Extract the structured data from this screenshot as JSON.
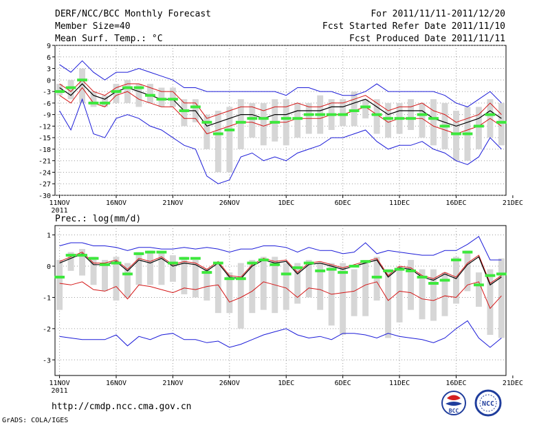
{
  "colors": {
    "envelope": "#1a1ad8",
    "inner": "#d41414",
    "mean": "#000000",
    "obs": "#3ce83c",
    "box": "#d6d6d6",
    "grid": "#9a9a9a"
  },
  "header": {
    "title": "DERF/NCC/BCC Monthly Forecast",
    "member_size": "Member Size=40",
    "variable": "Mean Surf. Temp.: °C",
    "period": "For 2011/11/11-2011/12/20",
    "started": "Fcst Started Refer Date 2011/11/10",
    "produced": "Fcst Produced Date 2011/11/11"
  },
  "footer": {
    "url": "http://cmdp.ncc.cma.gov.cn",
    "grads": "GrADS: COLA/IGES",
    "logo_bcc": "BCC",
    "logo_ncc": "NCC"
  },
  "chart_data": [
    {
      "type": "line",
      "name": "temperature",
      "title": "Mean Surf. Temp.: °C",
      "x": [
        1,
        2,
        3,
        4,
        5,
        6,
        7,
        8,
        9,
        10,
        11,
        12,
        13,
        14,
        15,
        16,
        17,
        18,
        19,
        20,
        21,
        22,
        23,
        24,
        25,
        26,
        27,
        28,
        29,
        30,
        31,
        32,
        33,
        34,
        35,
        36,
        37,
        38,
        39,
        40
      ],
      "xlim": [
        0.6,
        40.4
      ],
      "ylim": [
        -30,
        9
      ],
      "yticks": [
        9,
        6,
        3,
        0,
        -3,
        -6,
        -9,
        -12,
        -15,
        -18,
        -21,
        -24,
        -27,
        -30
      ],
      "xticks": [
        {
          "x": 1,
          "label": "11NOV",
          "sub": "2011"
        },
        {
          "x": 6,
          "label": "16NOV"
        },
        {
          "x": 11,
          "label": "21NOV"
        },
        {
          "x": 16,
          "label": "26NOV"
        },
        {
          "x": 21,
          "label": "1DEC"
        },
        {
          "x": 26,
          "label": "6DEC"
        },
        {
          "x": 31,
          "label": "11DEC"
        },
        {
          "x": 36,
          "label": "16DEC"
        },
        {
          "x": 41,
          "label": "21DEC"
        }
      ],
      "series": [
        {
          "name": "max",
          "values": [
            4,
            2,
            5,
            2,
            0,
            2,
            2,
            3,
            2,
            1,
            0,
            -2,
            -2,
            -3,
            -3,
            -3,
            -3,
            -3,
            -3,
            -3,
            -4,
            -2,
            -2,
            -3,
            -3,
            -4,
            -4,
            -3,
            -1,
            -3,
            -3,
            -3,
            -3,
            -3,
            -4,
            -6,
            -7,
            -5,
            -3,
            -6
          ]
        },
        {
          "name": "upper",
          "values": [
            -1,
            -3,
            0,
            -3,
            -4,
            -2,
            -1,
            -1,
            -2,
            -3,
            -3,
            -6,
            -6,
            -10,
            -9,
            -8,
            -7,
            -7,
            -8,
            -7,
            -7,
            -6,
            -7,
            -7,
            -6,
            -6,
            -5,
            -4,
            -6,
            -8,
            -7,
            -7,
            -6,
            -8,
            -9,
            -11,
            -10,
            -9,
            -6,
            -9
          ]
        },
        {
          "name": "mean",
          "values": [
            -2,
            -4,
            -1,
            -4,
            -5,
            -3,
            -2,
            -3,
            -4,
            -5,
            -5,
            -8,
            -8,
            -12,
            -11,
            -10,
            -9,
            -9,
            -10,
            -9,
            -9,
            -8,
            -8,
            -8,
            -7,
            -7,
            -6,
            -5,
            -7,
            -9,
            -8,
            -8,
            -8,
            -10,
            -11,
            -12,
            -11,
            -10,
            -8,
            -10
          ]
        },
        {
          "name": "lower",
          "values": [
            -4,
            -6,
            -2,
            -6,
            -7,
            -4,
            -3,
            -5,
            -6,
            -7,
            -7,
            -10,
            -10,
            -14,
            -13,
            -12,
            -11,
            -11,
            -12,
            -11,
            -11,
            -10,
            -10,
            -10,
            -9,
            -9,
            -8,
            -7,
            -9,
            -11,
            -10,
            -10,
            -10,
            -12,
            -13,
            -14,
            -13,
            -12,
            -10,
            -12
          ]
        },
        {
          "name": "min",
          "values": [
            -8,
            -13,
            -5,
            -14,
            -15,
            -10,
            -9,
            -10,
            -12,
            -13,
            -15,
            -17,
            -18,
            -25,
            -27,
            -26,
            -20,
            -19,
            -21,
            -20,
            -21,
            -19,
            -18,
            -17,
            -15,
            -15,
            -14,
            -13,
            -16,
            -18,
            -17,
            -17,
            -16,
            -18,
            -19,
            -21,
            -22,
            -20,
            -15,
            -18
          ]
        },
        {
          "name": "obs",
          "values": [
            -3,
            -2,
            0,
            -6,
            -6,
            -3,
            -2,
            -2,
            -4,
            -5,
            -5,
            -8,
            -7,
            -11,
            -14,
            -13,
            -11,
            -10,
            -10,
            -11,
            -10,
            -10,
            -9,
            -9,
            -9,
            -9,
            -8,
            -7,
            -9,
            -10,
            -10,
            -10,
            -9,
            -10,
            -12,
            -14,
            -14,
            -12,
            -9,
            -11
          ]
        }
      ],
      "boxes": [
        {
          "lo": -4,
          "hi": -1
        },
        {
          "lo": -5,
          "hi": 0
        },
        {
          "lo": -6,
          "hi": 3
        },
        {
          "lo": -7,
          "hi": -3
        },
        {
          "lo": -7,
          "hi": -4
        },
        {
          "lo": -6,
          "hi": -1
        },
        {
          "lo": -6,
          "hi": 0
        },
        {
          "lo": -7,
          "hi": -1
        },
        {
          "lo": -6,
          "hi": -1
        },
        {
          "lo": -7,
          "hi": -2
        },
        {
          "lo": -7,
          "hi": -2
        },
        {
          "lo": -12,
          "hi": -5
        },
        {
          "lo": -11,
          "hi": -5
        },
        {
          "lo": -18,
          "hi": -9
        },
        {
          "lo": -24,
          "hi": -8
        },
        {
          "lo": -24,
          "hi": -7
        },
        {
          "lo": -18,
          "hi": -5
        },
        {
          "lo": -15,
          "hi": -6
        },
        {
          "lo": -17,
          "hi": -6
        },
        {
          "lo": -16,
          "hi": -5
        },
        {
          "lo": -17,
          "hi": -5
        },
        {
          "lo": -15,
          "hi": -6
        },
        {
          "lo": -14,
          "hi": -6
        },
        {
          "lo": -14,
          "hi": -4
        },
        {
          "lo": -13,
          "hi": -5
        },
        {
          "lo": -12,
          "hi": -5
        },
        {
          "lo": -12,
          "hi": -3
        },
        {
          "lo": -10,
          "hi": -5
        },
        {
          "lo": -14,
          "hi": -5
        },
        {
          "lo": -15,
          "hi": -6
        },
        {
          "lo": -14,
          "hi": -6
        },
        {
          "lo": -13,
          "hi": -5
        },
        {
          "lo": -15,
          "hi": -6
        },
        {
          "lo": -17,
          "hi": -5
        },
        {
          "lo": -18,
          "hi": -6
        },
        {
          "lo": -21,
          "hi": -8
        },
        {
          "lo": -21,
          "hi": -7
        },
        {
          "lo": -18,
          "hi": -7
        },
        {
          "lo": -15,
          "hi": -5
        },
        {
          "lo": -17,
          "hi": -6
        }
      ]
    },
    {
      "type": "line",
      "name": "precipitation",
      "title": "Prec.: log(mm/d)",
      "x": [
        1,
        2,
        3,
        4,
        5,
        6,
        7,
        8,
        9,
        10,
        11,
        12,
        13,
        14,
        15,
        16,
        17,
        18,
        19,
        20,
        21,
        22,
        23,
        24,
        25,
        26,
        27,
        28,
        29,
        30,
        31,
        32,
        33,
        34,
        35,
        36,
        37,
        38,
        39,
        40
      ],
      "xlim": [
        0.6,
        40.4
      ],
      "ylim": [
        -3.5,
        1.3
      ],
      "yticks": [
        1,
        0,
        -1,
        -2,
        -3
      ],
      "xticks": [
        {
          "x": 1,
          "label": "11NOV",
          "sub": "2011"
        },
        {
          "x": 6,
          "label": "16NOV"
        },
        {
          "x": 11,
          "label": "21NOV"
        },
        {
          "x": 16,
          "label": "26NOV"
        },
        {
          "x": 21,
          "label": "1DEC"
        },
        {
          "x": 26,
          "label": "6DEC"
        },
        {
          "x": 31,
          "label": "11DEC"
        },
        {
          "x": 36,
          "label": "16DEC"
        },
        {
          "x": 41,
          "label": "21DEC"
        }
      ],
      "series": [
        {
          "name": "max",
          "values": [
            0.65,
            0.75,
            0.75,
            0.65,
            0.65,
            0.6,
            0.5,
            0.6,
            0.6,
            0.55,
            0.55,
            0.6,
            0.55,
            0.6,
            0.55,
            0.45,
            0.55,
            0.55,
            0.65,
            0.65,
            0.6,
            0.45,
            0.6,
            0.5,
            0.5,
            0.4,
            0.45,
            0.75,
            0.4,
            0.5,
            0.45,
            0.4,
            0.35,
            0.35,
            0.5,
            0.5,
            0.7,
            0.95,
            0.2,
            0.2
          ]
        },
        {
          "name": "upper",
          "values": [
            0.15,
            0.3,
            0.45,
            0.1,
            0.1,
            0.2,
            -0.1,
            0.25,
            0.15,
            0.3,
            0.05,
            0.15,
            0.1,
            -0.1,
            0.15,
            -0.3,
            -0.35,
            0.05,
            0.25,
            0.15,
            0.2,
            -0.2,
            0.1,
            0.15,
            0.05,
            -0.05,
            0.05,
            0.15,
            0.25,
            -0.3,
            0.0,
            -0.05,
            -0.3,
            -0.4,
            -0.2,
            -0.35,
            0.1,
            0.35,
            -0.55,
            -0.3
          ]
        },
        {
          "name": "mean",
          "values": [
            0.1,
            0.25,
            0.4,
            0.05,
            0.05,
            0.15,
            -0.15,
            0.2,
            0.1,
            0.25,
            0.0,
            0.1,
            0.05,
            -0.15,
            0.1,
            -0.35,
            -0.4,
            0.0,
            0.2,
            0.1,
            0.15,
            -0.25,
            0.05,
            0.1,
            0.0,
            -0.1,
            0.0,
            0.1,
            0.2,
            -0.35,
            -0.05,
            -0.1,
            -0.35,
            -0.45,
            -0.25,
            -0.4,
            0.05,
            0.3,
            -0.6,
            -0.35
          ]
        },
        {
          "name": "lower",
          "values": [
            -0.55,
            -0.6,
            -0.5,
            -0.75,
            -0.8,
            -0.65,
            -1.05,
            -0.6,
            -0.65,
            -0.75,
            -0.85,
            -0.7,
            -0.75,
            -0.65,
            -0.6,
            -1.15,
            -1.0,
            -0.8,
            -0.5,
            -0.6,
            -0.7,
            -1.0,
            -0.7,
            -0.75,
            -0.9,
            -0.85,
            -0.8,
            -0.6,
            -0.5,
            -1.1,
            -0.8,
            -0.85,
            -1.05,
            -1.1,
            -0.95,
            -1.0,
            -0.6,
            -0.5,
            -1.35,
            -0.95
          ]
        },
        {
          "name": "min",
          "values": [
            -2.25,
            -2.3,
            -2.35,
            -2.35,
            -2.35,
            -2.2,
            -2.55,
            -2.25,
            -2.35,
            -2.2,
            -2.15,
            -2.35,
            -2.35,
            -2.45,
            -2.4,
            -2.6,
            -2.5,
            -2.35,
            -2.2,
            -2.1,
            -2.0,
            -2.2,
            -2.3,
            -2.25,
            -2.35,
            -2.15,
            -2.15,
            -2.2,
            -2.3,
            -2.15,
            -2.25,
            -2.3,
            -2.35,
            -2.45,
            -2.3,
            -2.0,
            -1.75,
            -2.3,
            -2.6,
            -2.3
          ]
        },
        {
          "name": "obs",
          "values": [
            -0.35,
            0.35,
            0.35,
            0.25,
            0.05,
            0.1,
            -0.25,
            0.4,
            0.45,
            0.45,
            0.1,
            0.25,
            0.25,
            -0.2,
            0.1,
            -0.4,
            -0.4,
            0.1,
            0.2,
            0.05,
            -0.25,
            -0.05,
            0.1,
            -0.15,
            -0.1,
            -0.2,
            0.0,
            0.15,
            -0.35,
            -0.15,
            -0.1,
            -0.15,
            -0.35,
            -0.55,
            -0.45,
            0.2,
            0.45,
            -0.6,
            -0.3,
            -0.25
          ]
        }
      ],
      "boxes": [
        {
          "lo": -1.4,
          "hi": 0.2
        },
        {
          "lo": -0.15,
          "hi": 0.45
        },
        {
          "lo": -0.3,
          "hi": 0.55
        },
        {
          "lo": -0.6,
          "hi": 0.3
        },
        {
          "lo": -0.8,
          "hi": 0.2
        },
        {
          "lo": -1.1,
          "hi": 0.3
        },
        {
          "lo": -1.0,
          "hi": 0.1
        },
        {
          "lo": -0.6,
          "hi": 0.45
        },
        {
          "lo": -0.6,
          "hi": 0.5
        },
        {
          "lo": -0.6,
          "hi": 0.45
        },
        {
          "lo": -0.5,
          "hi": 0.35
        },
        {
          "lo": -0.9,
          "hi": 0.3
        },
        {
          "lo": -1.0,
          "hi": 0.2
        },
        {
          "lo": -1.1,
          "hi": -0.1
        },
        {
          "lo": -1.5,
          "hi": 0.1
        },
        {
          "lo": -1.5,
          "hi": -0.2
        },
        {
          "lo": -2.0,
          "hi": 0.1
        },
        {
          "lo": -1.5,
          "hi": 0.2
        },
        {
          "lo": -1.4,
          "hi": 0.3
        },
        {
          "lo": -1.5,
          "hi": 0.3
        },
        {
          "lo": -1.4,
          "hi": 0.1
        },
        {
          "lo": -1.2,
          "hi": 0.1
        },
        {
          "lo": -1.0,
          "hi": 0.2
        },
        {
          "lo": -1.4,
          "hi": 0.1
        },
        {
          "lo": -1.9,
          "hi": 0.1
        },
        {
          "lo": -2.2,
          "hi": 0.1
        },
        {
          "lo": -1.6,
          "hi": -0.1
        },
        {
          "lo": -1.6,
          "hi": 0.2
        },
        {
          "lo": -1.1,
          "hi": 0.3
        },
        {
          "lo": -2.3,
          "hi": -0.1
        },
        {
          "lo": -1.8,
          "hi": 0.0
        },
        {
          "lo": -1.4,
          "hi": 0.2
        },
        {
          "lo": -1.7,
          "hi": -0.1
        },
        {
          "lo": -1.75,
          "hi": -0.1
        },
        {
          "lo": -1.6,
          "hi": -0.2
        },
        {
          "lo": -1.2,
          "hi": 0.3
        },
        {
          "lo": -0.8,
          "hi": 0.5
        },
        {
          "lo": -1.3,
          "hi": -0.2
        },
        {
          "lo": -2.2,
          "hi": -0.1
        },
        {
          "lo": -2.3,
          "hi": 0.25
        }
      ]
    }
  ]
}
